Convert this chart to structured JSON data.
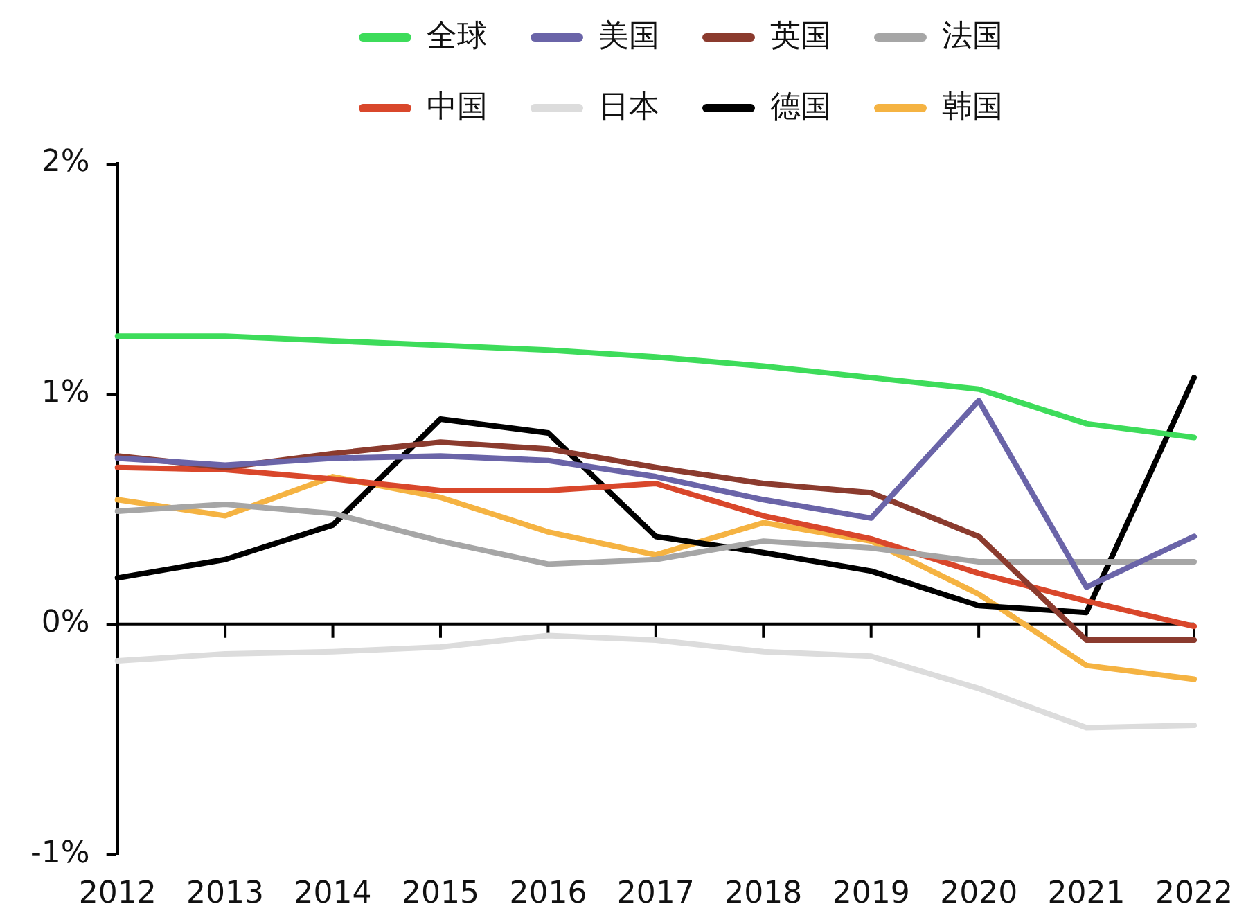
{
  "chart_data": {
    "type": "line",
    "categories": [
      "2012",
      "2013",
      "2014",
      "2015",
      "2016",
      "2017",
      "2018",
      "2019",
      "2020",
      "2021",
      "2022"
    ],
    "series": [
      {
        "name": "全球",
        "color": "#3ddc5a",
        "values": [
          1.25,
          1.25,
          1.23,
          1.21,
          1.19,
          1.16,
          1.12,
          1.07,
          1.02,
          0.87,
          0.81
        ]
      },
      {
        "name": "美国",
        "color": "#6a64a8",
        "values": [
          0.72,
          0.69,
          0.72,
          0.73,
          0.71,
          0.64,
          0.54,
          0.46,
          0.97,
          0.16,
          0.38
        ]
      },
      {
        "name": "英国",
        "color": "#8b3b2e",
        "values": [
          0.73,
          0.68,
          0.74,
          0.79,
          0.76,
          0.68,
          0.61,
          0.57,
          0.38,
          -0.07,
          -0.07
        ]
      },
      {
        "name": "法国",
        "color": "#a6a6a6",
        "values": [
          0.49,
          0.52,
          0.48,
          0.36,
          0.26,
          0.28,
          0.36,
          0.33,
          0.27,
          0.27,
          0.27
        ]
      },
      {
        "name": "中国",
        "color": "#d9472b",
        "values": [
          0.68,
          0.67,
          0.63,
          0.58,
          0.58,
          0.61,
          0.47,
          0.37,
          0.22,
          0.1,
          -0.01
        ]
      },
      {
        "name": "日本",
        "color": "#dcdcdc",
        "values": [
          -0.16,
          -0.13,
          -0.12,
          -0.1,
          -0.05,
          -0.07,
          -0.12,
          -0.14,
          -0.28,
          -0.45,
          -0.44
        ]
      },
      {
        "name": "德国",
        "color": "#000000",
        "values": [
          0.2,
          0.28,
          0.43,
          0.89,
          0.83,
          0.38,
          0.31,
          0.23,
          0.08,
          0.05,
          1.07
        ]
      },
      {
        "name": "韩国",
        "color": "#f5b342",
        "values": [
          0.54,
          0.47,
          0.64,
          0.55,
          0.4,
          0.3,
          0.44,
          0.36,
          0.13,
          -0.18,
          -0.24
        ]
      }
    ],
    "ylim": [
      -1,
      2
    ],
    "yticks": [
      {
        "value": -1,
        "label": "-1%"
      },
      {
        "value": 0,
        "label": "0%"
      },
      {
        "value": 1,
        "label": "1%"
      },
      {
        "value": 2,
        "label": "2%"
      }
    ],
    "ref_lines": [
      {
        "axis": "y",
        "value": 0,
        "color": "#000000"
      }
    ],
    "grid": false,
    "legend": "top",
    "marker": "none"
  }
}
